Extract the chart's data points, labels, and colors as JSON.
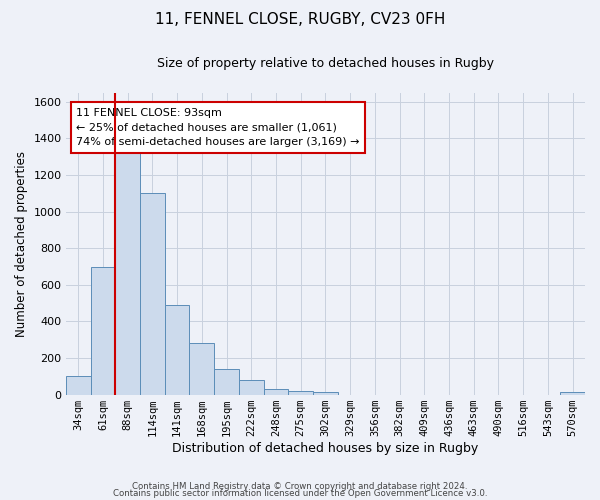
{
  "title_line1": "11, FENNEL CLOSE, RUGBY, CV23 0FH",
  "title_line2": "Size of property relative to detached houses in Rugby",
  "xlabel": "Distribution of detached houses by size in Rugby",
  "ylabel": "Number of detached properties",
  "bar_labels": [
    "34sqm",
    "61sqm",
    "88sqm",
    "114sqm",
    "141sqm",
    "168sqm",
    "195sqm",
    "222sqm",
    "248sqm",
    "275sqm",
    "302sqm",
    "329sqm",
    "356sqm",
    "382sqm",
    "409sqm",
    "436sqm",
    "463sqm",
    "490sqm",
    "516sqm",
    "543sqm",
    "570sqm"
  ],
  "bar_values": [
    100,
    700,
    1340,
    1100,
    490,
    280,
    140,
    80,
    30,
    20,
    15,
    0,
    0,
    0,
    0,
    0,
    0,
    0,
    0,
    0,
    15
  ],
  "bar_color": "#ccdaec",
  "bar_edge_color": "#5b8db8",
  "grid_color": "#c8d0de",
  "background_color": "#eef1f8",
  "vline_x_index": 2,
  "vline_color": "#cc0000",
  "annotation_text": "11 FENNEL CLOSE: 93sqm\n← 25% of detached houses are smaller (1,061)\n74% of semi-detached houses are larger (3,169) →",
  "annotation_box_color": "#ffffff",
  "annotation_box_edge": "#cc0000",
  "ylim": [
    0,
    1650
  ],
  "yticks": [
    0,
    200,
    400,
    600,
    800,
    1000,
    1200,
    1400,
    1600
  ],
  "footer_line1": "Contains HM Land Registry data © Crown copyright and database right 2024.",
  "footer_line2": "Contains public sector information licensed under the Open Government Licence v3.0."
}
